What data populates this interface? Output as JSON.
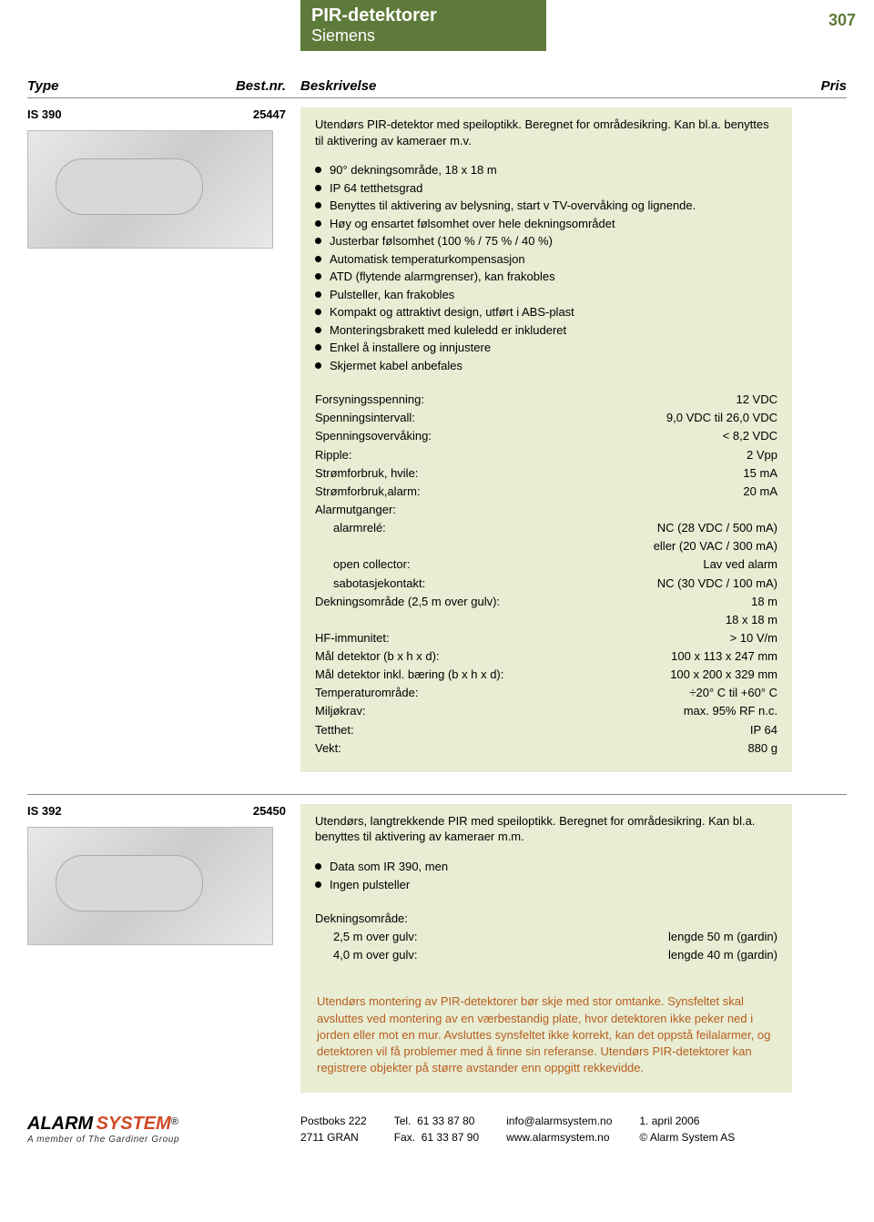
{
  "header": {
    "title": "PIR-detektorer",
    "subtitle": "Siemens",
    "page_number": "307"
  },
  "table_head": {
    "type": "Type",
    "bestnr": "Best.nr.",
    "beskrivelse": "Beskrivelse",
    "pris": "Pris"
  },
  "product1": {
    "type": "IS 390",
    "bestnr": "25447",
    "intro": "Utendørs PIR-detektor med speiloptikk. Beregnet for områdesikring. Kan bl.a. benyttes til aktivering av kameraer m.v.",
    "bullets": [
      "90° dekningsområde, 18 x 18 m",
      "IP 64 tetthetsgrad",
      "Benyttes til aktivering av belysning, start v TV-overvåking og lignende.",
      "Høy og ensartet følsomhet over hele dekningsområdet",
      "Justerbar følsomhet (100 % / 75 % / 40 %)",
      "Automatisk temperaturkompensasjon",
      "ATD (flytende alarmgrenser), kan frakobles",
      "Pulsteller, kan frakobles",
      "Kompakt og attraktivt design, utført i ABS-plast",
      "Monteringsbrakett med kuleledd er inkluderet",
      "Enkel å installere og innjustere",
      "Skjermet kabel anbefales"
    ],
    "specs": [
      {
        "label": "Forsyningsspenning:",
        "value": "12 VDC"
      },
      {
        "label": "Spenningsintervall:",
        "value": "9,0 VDC til 26,0 VDC"
      },
      {
        "label": "Spenningsovervåking:",
        "value": "< 8,2 VDC"
      },
      {
        "label": "Ripple:",
        "value": "2 Vpp"
      },
      {
        "label": "Strømforbruk, hvile:",
        "value": "15 mA"
      },
      {
        "label": "Strømforbruk,alarm:",
        "value": "20 mA"
      },
      {
        "label": "Alarmutganger:",
        "value": ""
      },
      {
        "label": "alarmrelé:",
        "value": "NC (28 VDC / 500 mA)",
        "indent": true
      },
      {
        "label": "",
        "value": "eller  (20 VAC / 300 mA)"
      },
      {
        "label": "open collector:",
        "value": "Lav ved alarm",
        "indent": true
      },
      {
        "label": "sabotasjekontakt:",
        "value": "NC (30 VDC / 100 mA)",
        "indent": true
      },
      {
        "label": "Dekningsområde (2,5 m over gulv):",
        "value": "18 m"
      },
      {
        "label": "",
        "value": "18 x 18 m"
      },
      {
        "label": "HF-immunitet:",
        "value": "> 10 V/m"
      },
      {
        "label": "Mål detektor (b x h x d):",
        "value": "100 x 113 x 247 mm"
      },
      {
        "label": "Mål detektor inkl. bæring (b x h x d):",
        "value": "100 x 200 x 329 mm"
      },
      {
        "label": "Temperaturområde:",
        "value": "÷20° C til +60° C"
      },
      {
        "label": "Miljøkrav:",
        "value": "max. 95% RF n.c."
      },
      {
        "label": "Tetthet:",
        "value": "IP 64"
      },
      {
        "label": "Vekt:",
        "value": "880 g"
      }
    ]
  },
  "product2": {
    "type": "IS 392",
    "bestnr": "25450",
    "intro": "Utendørs, langtrekkende PIR med speiloptikk. Beregnet for områdesikring. Kan bl.a. benyttes til aktivering av kameraer m.m.",
    "bullets": [
      "Data som IR 390, men",
      "Ingen pulsteller"
    ],
    "specs": [
      {
        "label": "Dekningsområde:",
        "value": ""
      },
      {
        "label": "2,5 m over gulv:",
        "value": "lengde 50 m (gardin)",
        "indent": true
      },
      {
        "label": "4,0 m over gulv:",
        "value": "lengde 40 m (gardin)",
        "indent": true
      }
    ],
    "note": "Utendørs montering av PIR-detektorer bør skje med stor omtanke. Synsfeltet skal avsluttes ved montering av en værbestandig plate, hvor detektoren ikke peker ned i jorden eller mot en mur. Avsluttes synsfeltet ikke korrekt, kan det oppstå feilalarmer, og detektoren vil få problemer med å finne sin referanse. Utendørs PIR-detektorer kan registrere objekter på større avstander enn oppgitt rekkevidde."
  },
  "footer": {
    "logo1": "ALARM",
    "logo2": "SYSTEM",
    "reg": "®",
    "tagline": "A member of The Gardiner Group",
    "addr1": "Postboks 222",
    "addr2": "2711  GRAN",
    "tel_label": "Tel.",
    "tel": "61 33 87 80",
    "fax_label": "Fax.",
    "fax": "61 33 87 90",
    "email": "info@alarmsystem.no",
    "web": "www.alarmsystem.no",
    "date": "1. april 2006",
    "copyright": "© Alarm System AS"
  },
  "colors": {
    "header_bg": "#5e7a3a",
    "desc_bg": "#e8edd3",
    "note_color": "#b85c1e",
    "logo_orange": "#d04a28"
  }
}
